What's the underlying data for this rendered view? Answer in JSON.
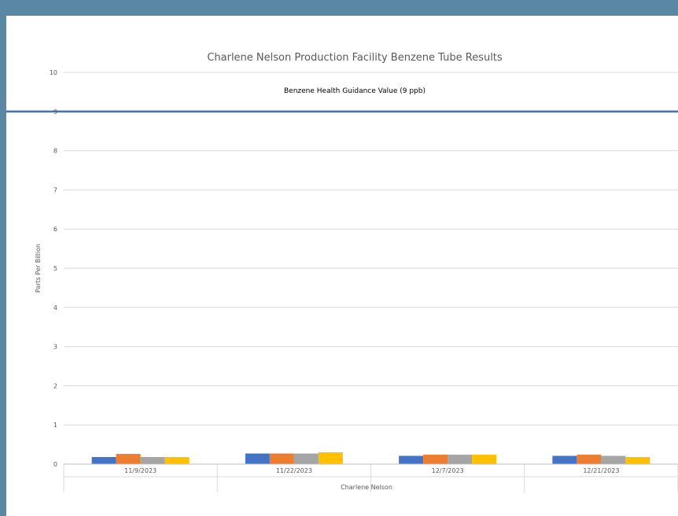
{
  "chart_data": {
    "type": "bar",
    "title": "Charlene Nelson Production Facility Benzene Tube Results",
    "xlabel": "Charlene Nelson",
    "ylabel": "Parts Per Billion",
    "ylim": [
      0,
      10
    ],
    "yticks": [
      "0",
      "1",
      "2",
      "3",
      "4",
      "5",
      "6",
      "7",
      "8",
      "9",
      "10"
    ],
    "grid": true,
    "categories": [
      "11/9/2023",
      "11/22/2023",
      "12/7/2023",
      "12/21/2023"
    ],
    "series": [
      {
        "color": "#4472c4",
        "values": [
          0.18,
          0.27,
          0.21,
          0.21
        ]
      },
      {
        "color": "#ed7d31",
        "values": [
          0.26,
          0.27,
          0.24,
          0.24
        ]
      },
      {
        "color": "#a5a5a5",
        "values": [
          0.18,
          0.27,
          0.24,
          0.21
        ]
      },
      {
        "color": "#ffc000",
        "values": [
          0.18,
          0.3,
          0.24,
          0.18
        ]
      }
    ],
    "reference_line": {
      "label": "Benzene Health Guidance Value (9 ppb)",
      "value": 9,
      "color": "#4472c4"
    }
  }
}
